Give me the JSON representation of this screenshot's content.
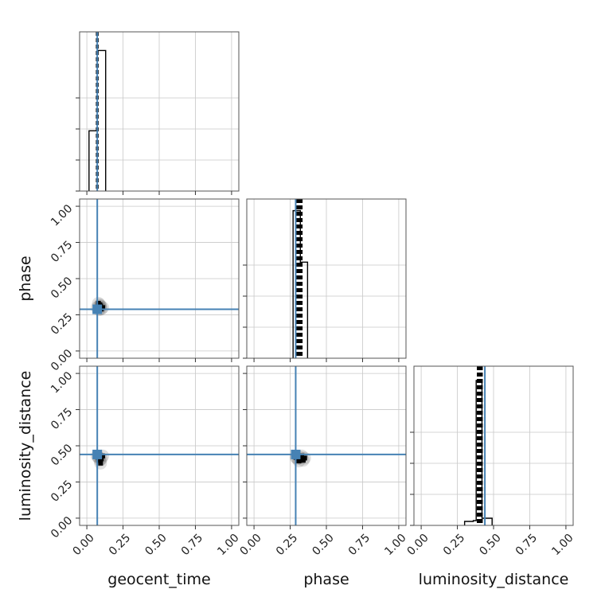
{
  "chart_data": {
    "type": "corner",
    "parameters": [
      "geocent_time",
      "phase",
      "luminosity_distance"
    ],
    "axis_range": [
      -0.05,
      1.05
    ],
    "ticks": [
      0.0,
      0.25,
      0.5,
      0.75,
      1.0
    ],
    "tick_labels": [
      "0.00",
      "0.25",
      "0.50",
      "0.75",
      "1.00"
    ],
    "grid": true,
    "colors": {
      "truth": "#4682b4",
      "hist": "#000000",
      "quantile": "#000000"
    },
    "truths": {
      "geocent_time": 0.072,
      "phase": 0.288,
      "luminosity_distance": 0.44
    },
    "histograms": {
      "geocent_time": {
        "bin_edges": [
          0.015,
          0.072,
          0.13
        ],
        "heights": [
          0.39,
          0.91
        ],
        "ymax": 1.0,
        "quantiles": [
          0.068,
          0.072,
          0.076
        ]
      },
      "phase": {
        "bin_edges": [
          0.27,
          0.32,
          0.37
        ],
        "heights": [
          0.86,
          0.56
        ],
        "ymax": 0.9,
        "quantiles": [
          0.29,
          0.297,
          0.305,
          0.31,
          0.318,
          0.325,
          0.33
        ]
      },
      "luminosity_distance": {
        "bin_edges": [
          0.3,
          0.36,
          0.38,
          0.42,
          0.44,
          0.49
        ],
        "heights": [
          0.025,
          0.03,
          0.91,
          0.045,
          0.045
        ],
        "ymax": 0.97,
        "quantiles": [
          0.39,
          0.4,
          0.405,
          0.412,
          0.42
        ]
      }
    },
    "scatter_2d": [
      {
        "x_param": "geocent_time",
        "y_param": "phase",
        "points": [
          [
            0.07,
            0.3
          ],
          [
            0.09,
            0.32
          ],
          [
            0.1,
            0.29
          ],
          [
            0.08,
            0.33
          ],
          [
            0.095,
            0.31
          ],
          [
            0.11,
            0.3
          ],
          [
            0.085,
            0.285
          ]
        ]
      },
      {
        "x_param": "geocent_time",
        "y_param": "luminosity_distance",
        "points": [
          [
            0.08,
            0.42
          ],
          [
            0.1,
            0.41
          ],
          [
            0.11,
            0.43
          ],
          [
            0.09,
            0.4
          ],
          [
            0.07,
            0.43
          ],
          [
            0.095,
            0.38
          ]
        ]
      },
      {
        "x_param": "phase",
        "y_param": "luminosity_distance",
        "points": [
          [
            0.3,
            0.41
          ],
          [
            0.32,
            0.42
          ],
          [
            0.34,
            0.4
          ],
          [
            0.33,
            0.43
          ],
          [
            0.31,
            0.395
          ],
          [
            0.35,
            0.415
          ],
          [
            0.29,
            0.42
          ]
        ]
      }
    ]
  }
}
